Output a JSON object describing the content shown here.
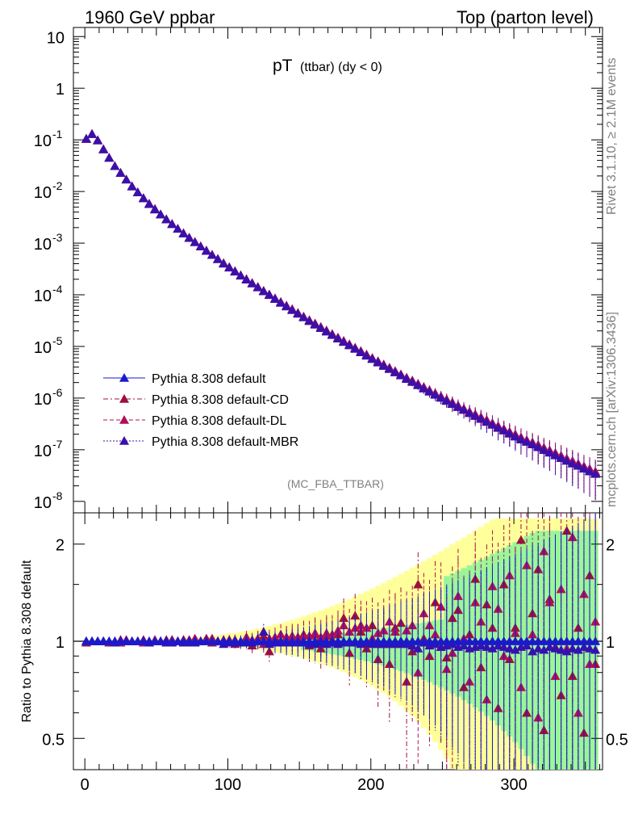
{
  "header": {
    "left": "1960 GeV ppbar",
    "right": "Top (parton level)"
  },
  "plot_title": {
    "main": "pT",
    "sub": "(ttbar) (dy < 0)"
  },
  "side_labels": {
    "rivet": "Rivet 3.1.10, ≥ 2.1M events",
    "mcplots": "mcplots.cern.ch [arXiv:1306.3436]"
  },
  "analysis_tag": "(MC_FBA_TTBAR)",
  "ratio_ylabel": "Ratio to Pythia 8.308 default",
  "legend": [
    {
      "label": "Pythia 8.308 default",
      "color": "#1a1acc",
      "dash": "solid"
    },
    {
      "label": "Pythia 8.308 default-CD",
      "color": "#a0103c",
      "dash": "dashdot"
    },
    {
      "label": "Pythia 8.308 default-DL",
      "color": "#b0105a",
      "dash": "dashed"
    },
    {
      "label": "Pythia 8.308 default-MBR",
      "color": "#3a10aa",
      "dash": "dotted"
    }
  ],
  "chart_data": [
    {
      "type": "scatter",
      "panel": "main",
      "yscale": "log",
      "xlim": [
        -8,
        362
      ],
      "ylim": [
        6e-09,
        15
      ],
      "yticks": [
        {
          "value": 10,
          "label": "10"
        },
        {
          "value": 1,
          "label": "1"
        },
        {
          "value": 0.1,
          "label": "10",
          "exp": "-1"
        },
        {
          "value": 0.01,
          "label": "10",
          "exp": "-2"
        },
        {
          "value": 0.001,
          "label": "10",
          "exp": "-3"
        },
        {
          "value": 0.0001,
          "label": "10",
          "exp": "-4"
        },
        {
          "value": 1e-05,
          "label": "10",
          "exp": "-5"
        },
        {
          "value": 1e-06,
          "label": "10",
          "exp": "-6"
        },
        {
          "value": 1e-07,
          "label": "10",
          "exp": "-7"
        },
        {
          "value": 1e-08,
          "label": "10",
          "exp": "-8"
        }
      ],
      "x": [
        1,
        5,
        9,
        13,
        17,
        21,
        25,
        29,
        33,
        37,
        41,
        45,
        49,
        53,
        57,
        61,
        65,
        69,
        73,
        77,
        81,
        85,
        89,
        93,
        97,
        101,
        105,
        109,
        113,
        117,
        121,
        125,
        129,
        133,
        137,
        141,
        145,
        149,
        153,
        157,
        161,
        165,
        169,
        173,
        177,
        181,
        185,
        189,
        193,
        197,
        201,
        205,
        209,
        213,
        217,
        221,
        225,
        229,
        233,
        237,
        241,
        245,
        249,
        253,
        257,
        261,
        265,
        269,
        273,
        277,
        281,
        285,
        289,
        293,
        297,
        301,
        305,
        309,
        313,
        317,
        321,
        325,
        329,
        333,
        337,
        341,
        345,
        349,
        353,
        357
      ],
      "series": [
        {
          "name": "Pythia 8.308 default",
          "values": [
            0.105,
            0.13,
            0.098,
            0.066,
            0.045,
            0.031,
            0.023,
            0.017,
            0.0126,
            0.0096,
            0.0074,
            0.0058,
            0.0045,
            0.0036,
            0.0029,
            0.00235,
            0.0019,
            0.00155,
            0.00127,
            0.00105,
            0.00086,
            0.00071,
            0.00059,
            0.00049,
            0.00041,
            0.00034,
            0.000283,
            0.000237,
            0.000199,
            0.000167,
            0.00014,
            0.000118,
            0.0001,
            8.4e-05,
            7.1e-05,
            6e-05,
            5.1e-05,
            4.35e-05,
            3.7e-05,
            3.15e-05,
            2.7e-05,
            2.3e-05,
            1.97e-05,
            1.68e-05,
            1.44e-05,
            1.23e-05,
            1.06e-05,
            9.1e-06,
            7.8e-06,
            6.7e-06,
            5.8e-06,
            5e-06,
            4.3e-06,
            3.7e-06,
            3.2e-06,
            2.8e-06,
            2.4e-06,
            2.1e-06,
            1.8e-06,
            1.55e-06,
            1.35e-06,
            1.18e-06,
            1.03e-06,
            9e-07,
            7.8e-07,
            6.8e-07,
            6e-07,
            5.2e-07,
            4.6e-07,
            4e-07,
            3.5e-07,
            3.1e-07,
            2.7e-07,
            2.4e-07,
            2.1e-07,
            1.85e-07,
            1.6e-07,
            1.45e-07,
            1.3e-07,
            1.15e-07,
            1e-07,
            9e-08,
            8e-08,
            7e-08,
            6.2e-08,
            5.5e-08,
            5e-08,
            4.4e-08,
            3.9e-08,
            3.5e-08
          ]
        },
        {
          "name": "Pythia 8.308 default-CD",
          "values": [
            0.104,
            0.13,
            0.098,
            0.066,
            0.045,
            0.031,
            0.023,
            0.0171,
            0.0126,
            0.0097,
            0.0074,
            0.0058,
            0.0046,
            0.0036,
            0.0029,
            0.00237,
            0.0019,
            0.00156,
            0.00128,
            0.00105,
            0.00087,
            0.00072,
            0.00059,
            0.00049,
            0.00041,
            0.00034,
            0.000285,
            0.000238,
            0.0002,
            0.000168,
            0.000141,
            0.000119,
            0.000101,
            8.5e-05,
            7.2e-05,
            6.1e-05,
            5.2e-05,
            4.4e-05,
            3.75e-05,
            3.2e-05,
            2.75e-05,
            2.35e-05,
            2e-05,
            1.71e-05,
            1.47e-05,
            1.26e-05,
            1.08e-05,
            9.3e-06,
            8e-06,
            6.9e-06,
            5.9e-06,
            5.1e-06,
            4.4e-06,
            3.8e-06,
            3.3e-06,
            2.85e-06,
            2.45e-06,
            2.15e-06,
            1.85e-06,
            1.6e-06,
            1.4e-06,
            1.22e-06,
            1.06e-06,
            9.3e-07,
            8.1e-07,
            7.1e-07,
            6.2e-07,
            5.4e-07,
            4.8e-07,
            4.2e-07,
            3.7e-07,
            3.2e-07,
            2.8e-07,
            2.5e-07,
            2.2e-07,
            1.9e-07,
            1.7e-07,
            1.5e-07,
            1.35e-07,
            1.2e-07,
            1.05e-07,
            9.5e-08,
            8.4e-08,
            7.5e-08,
            6.6e-08,
            5.9e-08,
            5.2e-08,
            4.7e-08,
            4.2e-08,
            3.7e-08
          ]
        },
        {
          "name": "Pythia 8.308 default-DL",
          "values": [
            0.105,
            0.131,
            0.099,
            0.066,
            0.045,
            0.031,
            0.023,
            0.0171,
            0.0127,
            0.0097,
            0.0075,
            0.0058,
            0.0046,
            0.0036,
            0.0029,
            0.00236,
            0.0019,
            0.00156,
            0.00128,
            0.00106,
            0.00087,
            0.00072,
            0.0006,
            0.0005,
            0.00041,
            0.000345,
            0.000288,
            0.00024,
            0.000202,
            0.00017,
            0.000143,
            0.00012,
            0.000102,
            8.6e-05,
            7.3e-05,
            6.2e-05,
            5.3e-05,
            4.5e-05,
            3.8e-05,
            3.25e-05,
            2.8e-05,
            2.4e-05,
            2.05e-05,
            1.75e-05,
            1.5e-05,
            1.29e-05,
            1.11e-05,
            9.5e-06,
            8.2e-06,
            7e-06,
            6e-06,
            5.2e-06,
            4.5e-06,
            3.9e-06,
            3.35e-06,
            2.9e-06,
            2.5e-06,
            2.2e-06,
            1.9e-06,
            1.65e-06,
            1.43e-06,
            1.25e-06,
            1.09e-06,
            9.5e-07,
            8.3e-07,
            7.2e-07,
            6.3e-07,
            5.5e-07,
            4.9e-07,
            4.3e-07,
            3.8e-07,
            3.3e-07,
            2.9e-07,
            2.55e-07,
            2.25e-07,
            2e-07,
            1.75e-07,
            1.55e-07,
            1.4e-07,
            1.25e-07,
            1.1e-07,
            9.8e-08,
            8.7e-08,
            7.7e-08,
            6.8e-08,
            6.1e-08,
            5.4e-08,
            4.8e-08,
            4.3e-08,
            3.8e-08
          ]
        },
        {
          "name": "Pythia 8.308 default-MBR",
          "values": [
            0.105,
            0.129,
            0.097,
            0.065,
            0.045,
            0.031,
            0.0229,
            0.017,
            0.0125,
            0.0096,
            0.0074,
            0.0057,
            0.0045,
            0.0036,
            0.00288,
            0.00233,
            0.00189,
            0.00154,
            0.00126,
            0.00104,
            0.00086,
            0.00071,
            0.00059,
            0.00049,
            0.0004,
            0.000337,
            0.000281,
            0.000235,
            0.000197,
            0.000166,
            0.000139,
            0.000117,
            9.9e-05,
            8.3e-05,
            7e-05,
            5.95e-05,
            5.05e-05,
            4.3e-05,
            3.65e-05,
            3.1e-05,
            2.65e-05,
            2.27e-05,
            1.94e-05,
            1.66e-05,
            1.42e-05,
            1.22e-05,
            1.05e-05,
            9e-06,
            7.7e-06,
            6.6e-06,
            5.7e-06,
            4.9e-06,
            4.2e-06,
            3.65e-06,
            3.15e-06,
            2.75e-06,
            2.35e-06,
            2.05e-06,
            1.78e-06,
            1.53e-06,
            1.33e-06,
            1.16e-06,
            1.01e-06,
            8.8e-07,
            7.7e-07,
            6.7e-07,
            5.9e-07,
            5.1e-07,
            4.5e-07,
            3.95e-07,
            3.45e-07,
            3.05e-07,
            2.65e-07,
            2.35e-07,
            2.05e-07,
            1.8e-07,
            1.58e-07,
            1.42e-07,
            1.27e-07,
            1.12e-07,
            9.9e-08,
            8.8e-08,
            7.8e-08,
            6.9e-08,
            6.1e-08,
            5.4e-08,
            4.9e-08,
            4.3e-08,
            3.8e-08,
            3.4e-08
          ]
        }
      ]
    },
    {
      "type": "scatter",
      "panel": "ratio",
      "yscale": "log",
      "xlim": [
        -8,
        362
      ],
      "ylim": [
        0.4,
        2.5
      ],
      "xticks": [
        0,
        100,
        200,
        300
      ],
      "yticks": [
        {
          "value": 0.5,
          "label": "0.5"
        },
        {
          "value": 1,
          "label": "1"
        },
        {
          "value": 2,
          "label": "2"
        }
      ],
      "ylabel": "Ratio to Pythia 8.308 default",
      "x": [
        1,
        5,
        9,
        13,
        17,
        21,
        25,
        29,
        33,
        37,
        41,
        45,
        49,
        53,
        57,
        61,
        65,
        69,
        73,
        77,
        81,
        85,
        89,
        93,
        97,
        101,
        105,
        109,
        113,
        117,
        121,
        125,
        129,
        133,
        137,
        141,
        145,
        149,
        153,
        157,
        161,
        165,
        169,
        173,
        177,
        181,
        185,
        189,
        193,
        197,
        201,
        205,
        209,
        213,
        217,
        221,
        225,
        229,
        233,
        237,
        241,
        245,
        249,
        253,
        257,
        261,
        265,
        269,
        273,
        277,
        281,
        285,
        289,
        293,
        297,
        301,
        305,
        309,
        313,
        317,
        321,
        325,
        329,
        333,
        337,
        341,
        345,
        349,
        353,
        357
      ],
      "series": [
        {
          "name": "Pythia 8.308 default-CD",
          "values": [
            0.99,
            1.0,
            1.0,
            1.0,
            0.99,
            1.0,
            1.01,
            1.0,
            1.0,
            1.0,
            1.01,
            0.99,
            1.0,
            1.0,
            1.01,
            1.01,
            1.0,
            1.01,
            1.01,
            0.99,
            1.0,
            1.02,
            0.99,
            1.0,
            1.0,
            1.01,
            0.98,
            0.99,
            1.0,
            0.97,
            1.02,
            1.04,
            0.93,
            1.0,
            1.0,
            1.03,
            1.02,
            1.03,
            1.05,
            0.97,
            1.05,
            0.95,
            1.04,
            1.01,
            1.05,
            1.18,
            0.92,
            1.2,
            1.07,
            0.95,
            1.12,
            0.88,
            0.98,
            0.85,
            1.1,
            1.14,
            0.75,
            0.93,
            1.5,
            1.02,
            0.9,
            1.32,
            0.96,
            0.89,
            1.18,
            1.25,
            0.72,
            1.05,
            1.56,
            0.83,
            1.3,
            1.1,
            0.62,
            1.5,
            0.88,
            1.1,
            2.06,
            0.6,
            1.22,
            1.67,
            0.53,
            1.35,
            0.96,
            0.68,
            2.2,
            0.78,
            1.1,
            0.52,
            1.6,
            0.85
          ]
        },
        {
          "name": "Pythia 8.308 default-DL",
          "values": [
            1.0,
            1.0,
            1.0,
            1.0,
            1.0,
            1.0,
            0.99,
            1.01,
            1.0,
            1.0,
            0.99,
            1.0,
            1.01,
            1.0,
            0.99,
            1.01,
            1.0,
            1.01,
            1.0,
            1.02,
            1.0,
            1.01,
            1.02,
            1.0,
            1.01,
            1.0,
            1.01,
            0.99,
            1.03,
            1.01,
            1.02,
            0.98,
            1.02,
            1.03,
            1.05,
            1.02,
            1.04,
            1.03,
            1.04,
            1.04,
            1.06,
            1.03,
            1.06,
            1.05,
            1.08,
            1.12,
            1.07,
            1.1,
            1.12,
            1.1,
            1.02,
            1.06,
            1.08,
            1.15,
            1.07,
            1.0,
            1.08,
            1.12,
            0.8,
            1.22,
            1.12,
            1.05,
            1.28,
            0.82,
            0.92,
            1.38,
            1.02,
            0.75,
            1.32,
            1.15,
            0.66,
            1.48,
            1.26,
            0.9,
            1.6,
            1.06,
            0.72,
            1.72,
            1.05,
            0.58,
            1.9,
            1.32,
            0.78,
            1.45,
            0.95,
            2.1,
            0.6,
            1.4,
            0.85,
            1.15
          ]
        },
        {
          "name": "Pythia 8.308 default-MBR",
          "values": [
            1.0,
            1.0,
            1.0,
            1.0,
            1.0,
            0.99,
            1.0,
            1.0,
            1.0,
            1.0,
            1.0,
            0.99,
            1.0,
            1.0,
            0.99,
            0.99,
            1.0,
            0.99,
            0.99,
            0.99,
            1.0,
            1.0,
            1.0,
            1.0,
            0.98,
            0.99,
            0.99,
            0.99,
            0.99,
            0.99,
            1.0,
            1.07,
            0.98,
            0.99,
            0.99,
            0.99,
            0.99,
            0.99,
            0.99,
            0.98,
            0.98,
            0.99,
            0.98,
            0.99,
            0.98,
            0.99,
            0.99,
            0.99,
            0.98,
            0.99,
            0.98,
            0.98,
            0.98,
            0.98,
            0.98,
            0.98,
            0.98,
            0.97,
            0.95,
            0.99,
            0.97,
            0.98,
            0.96,
            0.97,
            0.98,
            0.96,
            0.97,
            0.95,
            0.96,
            0.97,
            0.96,
            0.95,
            0.97,
            0.96,
            0.95,
            0.94,
            0.96,
            0.97,
            0.93,
            0.95,
            0.94,
            0.96,
            0.95,
            0.94,
            0.93,
            0.95,
            0.94,
            0.96,
            0.95,
            0.94
          ]
        },
        {
          "name": "Pythia 8.308 default",
          "values": [
            1,
            1,
            1,
            1,
            1,
            1,
            1,
            1,
            1,
            1,
            1,
            1,
            1,
            1,
            1,
            1,
            1,
            1,
            1,
            1,
            1,
            1,
            1,
            1,
            1,
            1,
            1,
            1,
            1,
            1,
            1,
            1,
            1,
            1,
            1,
            1,
            1,
            1,
            1,
            1,
            1,
            1,
            1,
            1,
            1,
            1,
            1,
            1,
            1,
            1,
            1,
            1,
            1,
            1,
            1,
            1,
            1,
            1,
            1,
            1,
            1,
            1,
            1,
            1,
            1,
            1,
            1,
            1,
            1,
            1,
            1,
            1,
            1,
            1,
            1,
            1,
            1,
            1,
            1,
            1,
            1,
            1,
            1,
            1,
            1,
            1,
            1,
            1,
            1,
            1
          ]
        }
      ]
    }
  ]
}
